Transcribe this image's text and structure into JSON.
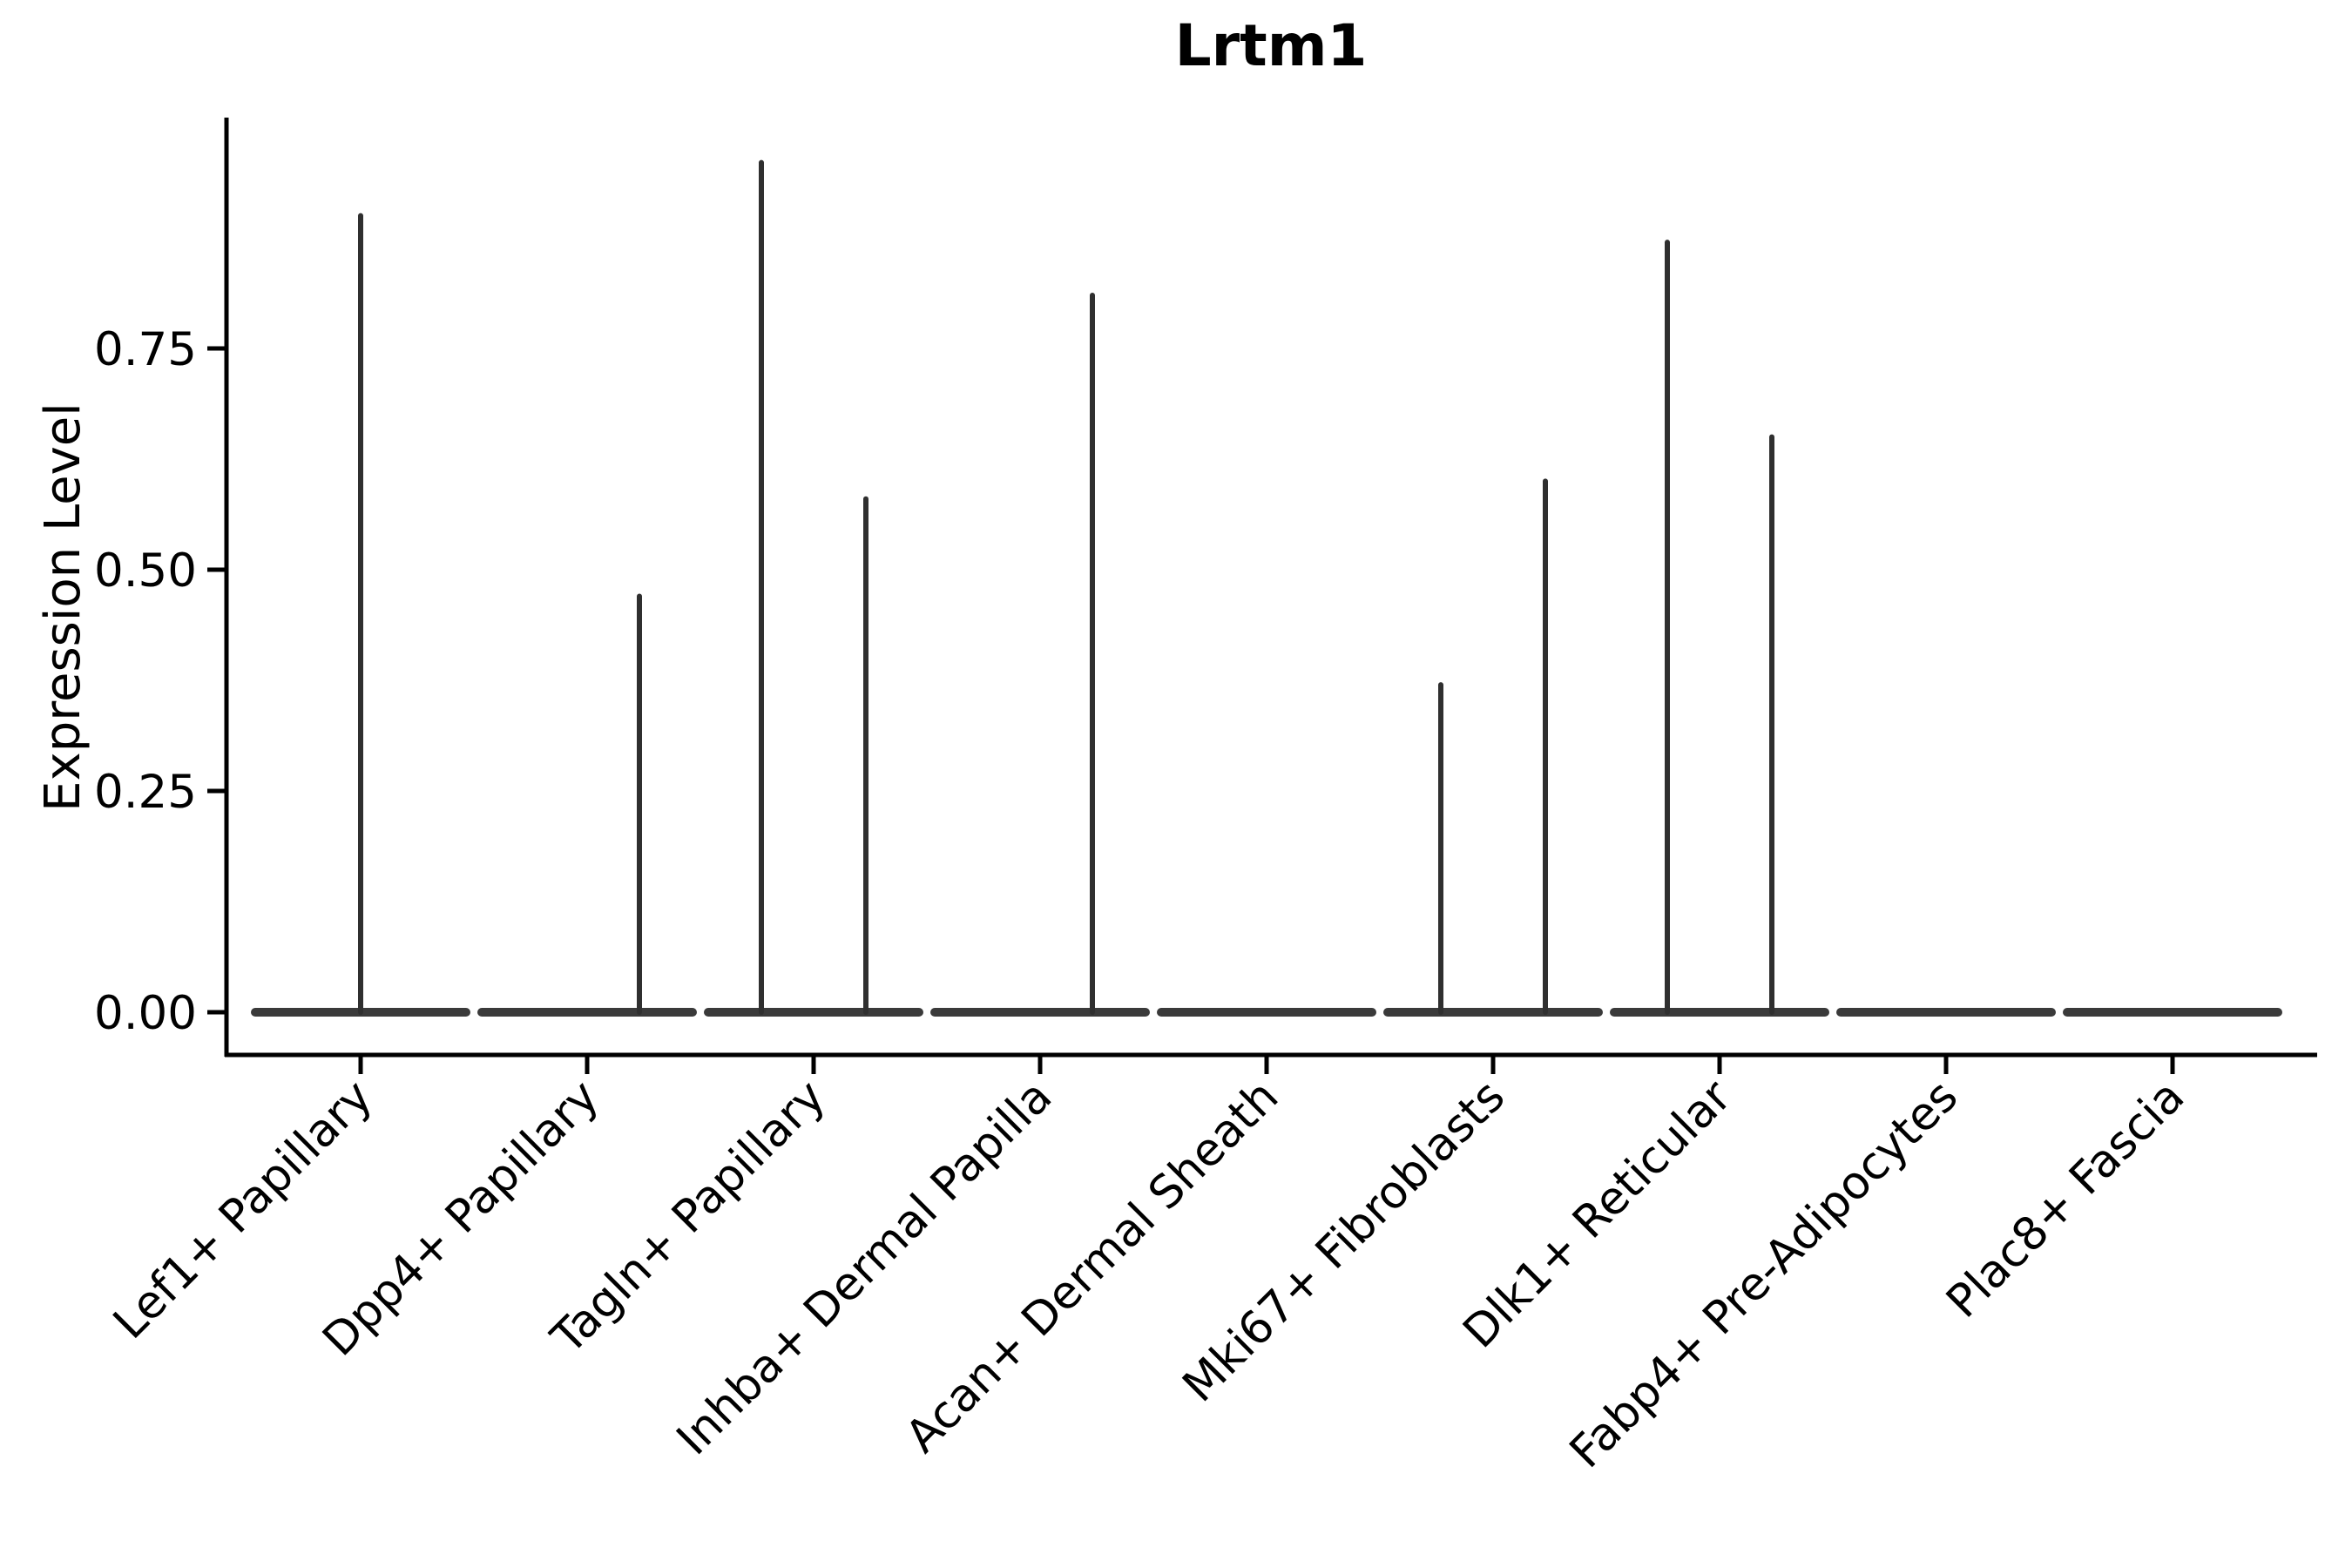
{
  "chart_data": {
    "type": "violin",
    "title": "Lrtm1",
    "xlabel": "",
    "ylabel": "Expression Level",
    "ylim": [
      0,
      1.01
    ],
    "yticks": [
      {
        "value": 0.0,
        "label": "0.00"
      },
      {
        "value": 0.25,
        "label": "0.25"
      },
      {
        "value": 0.5,
        "label": "0.50"
      },
      {
        "value": 0.75,
        "label": "0.75"
      }
    ],
    "categories": [
      "Lef1+ Papillary",
      "Dpp4+ Papillary",
      "Tagln+ Papillary",
      "Inhba+ Dermal Papilla",
      "Acan+ Dermal Sheath",
      "Mki67+ Fibroblasts",
      "Dlk1+ Reticular",
      "Fabp4+ Pre-Adipocytes",
      "Plac8+ Fascia"
    ],
    "legend": null,
    "grid": false,
    "series": [
      {
        "category": "Lef1+ Papillary",
        "baseline_value": 0,
        "spikes": [
          {
            "offset": 0,
            "max": 0.9
          }
        ]
      },
      {
        "category": "Dpp4+ Papillary",
        "baseline_value": 0,
        "spikes": [
          {
            "offset": 60,
            "max": 0.47
          }
        ]
      },
      {
        "category": "Tagln+ Papillary",
        "baseline_value": 0,
        "spikes": [
          {
            "offset": -60,
            "max": 0.96
          },
          {
            "offset": 60,
            "max": 0.58
          }
        ]
      },
      {
        "category": "Inhba+ Dermal Papilla",
        "baseline_value": 0,
        "spikes": [
          {
            "offset": 60,
            "max": 0.81
          }
        ]
      },
      {
        "category": "Acan+ Dermal Sheath",
        "baseline_value": 0,
        "spikes": []
      },
      {
        "category": "Mki67+ Fibroblasts",
        "baseline_value": 0,
        "spikes": [
          {
            "offset": -60,
            "max": 0.37
          },
          {
            "offset": 60,
            "max": 0.6
          }
        ]
      },
      {
        "category": "Dlk1+ Reticular",
        "baseline_value": 0,
        "spikes": [
          {
            "offset": -60,
            "max": 0.87
          },
          {
            "offset": 60,
            "max": 0.65
          }
        ]
      },
      {
        "category": "Fabp4+ Pre-Adipocytes",
        "baseline_value": 0,
        "spikes": []
      },
      {
        "category": "Plac8+ Fascia",
        "baseline_value": 0,
        "spikes": []
      }
    ]
  },
  "colors": {
    "background": "#ffffff",
    "axis": "#000000",
    "text": "#000000",
    "violin_base": "#3a3a3a",
    "violin_spike": "#2f2f2f"
  }
}
